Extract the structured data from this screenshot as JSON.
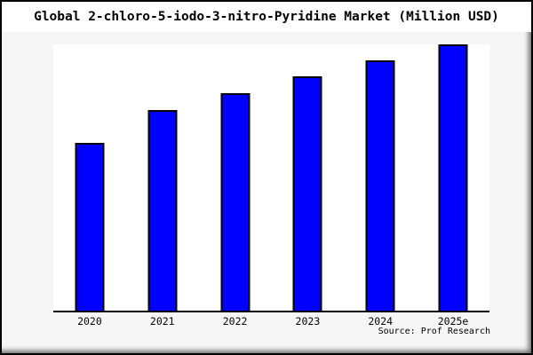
{
  "chart_data": {
    "type": "bar",
    "title": "Global 2-chloro-5-iodo-3-nitro-Pyridine Market (Million USD)",
    "categories": [
      "2020",
      "2021",
      "2022",
      "2023",
      "2024",
      "2025e"
    ],
    "values": [
      63,
      75.3,
      81.7,
      88,
      94,
      100
    ],
    "values_note": "relative bar heights estimated from pixels, indexed to 2025e = 100; no numeric axis labels shown in chart",
    "xlabel": "",
    "ylabel": "",
    "ylim": [
      0,
      100
    ],
    "grid": false,
    "legend": false,
    "source_note": "Source: Prof Research"
  },
  "colors": {
    "bar_fill": "#0000ff",
    "bar_border": "#000000",
    "plot_bg": "#ffffff",
    "chart_bg": "#f6f6f6",
    "title_band_bg": "#ffffff",
    "axis_line": "#000000",
    "text": "#000000",
    "frame_border": "#000000"
  }
}
